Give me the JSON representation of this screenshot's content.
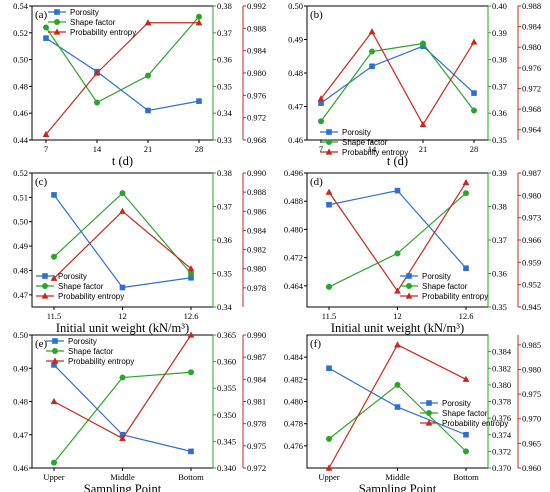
{
  "colors": {
    "porosity": "#2e6fd1",
    "shape": "#2aa52a",
    "entropy": "#c8291e"
  },
  "chart_data": [
    {
      "type": "line",
      "tag": "(a)",
      "xlabel": "t (d)",
      "categories": [
        "7",
        "14",
        "21",
        "28"
      ],
      "legend": [
        "Porosity",
        "Shape factor",
        "Probability entropy"
      ],
      "axes": {
        "left": {
          "min": 0.44,
          "max": 0.54,
          "ticks": [
            "0.44",
            "0.46",
            "0.48",
            "0.50",
            "0.52",
            "0.54"
          ]
        },
        "mid": {
          "min": 0.33,
          "max": 0.38,
          "ticks": [
            "0.33",
            "0.34",
            "0.35",
            "0.36",
            "0.37",
            "0.38"
          ]
        },
        "right": {
          "min": 0.968,
          "max": 0.992,
          "ticks": [
            "0.968",
            "0.972",
            "0.976",
            "0.980",
            "0.984",
            "0.988",
            "0.992"
          ]
        }
      },
      "series": [
        {
          "name": "Porosity",
          "axis": "left",
          "values": [
            0.516,
            0.491,
            0.462,
            0.469
          ]
        },
        {
          "name": "Shape factor",
          "axis": "mid",
          "values": [
            0.372,
            0.344,
            0.354,
            0.376
          ]
        },
        {
          "name": "Probability entropy",
          "axis": "right",
          "values": [
            0.969,
            0.98,
            0.989,
            0.989
          ]
        }
      ]
    },
    {
      "type": "line",
      "tag": "(b)",
      "xlabel": "t (d)",
      "categories": [
        "7",
        "14",
        "21",
        "28"
      ],
      "legend": [
        "Porosity",
        "Shape factor",
        "Probability entropy"
      ],
      "axes": {
        "left": {
          "min": 0.46,
          "max": 0.5,
          "ticks": [
            "0.46",
            "0.47",
            "0.48",
            "0.49",
            "0.50"
          ]
        },
        "mid": {
          "min": 0.35,
          "max": 0.4,
          "ticks": [
            "0.35",
            "0.36",
            "0.37",
            "0.38",
            "0.39",
            "0.40"
          ]
        },
        "right": {
          "min": 0.962,
          "max": 0.988,
          "ticks": [
            "0.964",
            "0.968",
            "0.972",
            "0.976",
            "0.980",
            "0.984",
            "0.988"
          ]
        }
      },
      "series": [
        {
          "name": "Porosity",
          "axis": "left",
          "values": [
            0.471,
            0.482,
            0.488,
            0.474
          ]
        },
        {
          "name": "Shape factor",
          "axis": "mid",
          "values": [
            0.357,
            0.383,
            0.386,
            0.361
          ]
        },
        {
          "name": "Probability entropy",
          "axis": "right",
          "values": [
            0.97,
            0.983,
            0.965,
            0.981
          ]
        }
      ]
    },
    {
      "type": "line",
      "tag": "(c)",
      "xlabel": "Initial unit weight (kN/m³)",
      "categories": [
        "11.5",
        "12",
        "12.6"
      ],
      "legend": [
        "Porosity",
        "Shape factor",
        "Probability entropy"
      ],
      "axes": {
        "left": {
          "min": 0.465,
          "max": 0.52,
          "ticks": [
            "0.47",
            "0.48",
            "0.49",
            "0.50",
            "0.51",
            "0.52"
          ]
        },
        "mid": {
          "min": 0.34,
          "max": 0.38,
          "ticks": [
            "0.34",
            "0.35",
            "0.36",
            "0.37",
            "0.38"
          ]
        },
        "right": {
          "min": 0.976,
          "max": 0.99,
          "ticks": [
            "0.978",
            "0.980",
            "0.982",
            "0.984",
            "0.986",
            "0.988",
            "0.990"
          ]
        }
      },
      "series": [
        {
          "name": "Porosity",
          "axis": "left",
          "values": [
            0.511,
            0.473,
            0.477
          ]
        },
        {
          "name": "Shape factor",
          "axis": "mid",
          "values": [
            0.355,
            0.374,
            0.35
          ]
        },
        {
          "name": "Probability entropy",
          "axis": "right",
          "values": [
            0.979,
            0.986,
            0.98
          ]
        }
      ]
    },
    {
      "type": "line",
      "tag": "(d)",
      "xlabel": "Initial unit weight (kN/m³)",
      "categories": [
        "11.5",
        "12",
        "12.6"
      ],
      "legend": [
        "Porosity",
        "Shape factor",
        "Probability entropy"
      ],
      "axes": {
        "left": {
          "min": 0.458,
          "max": 0.496,
          "ticks": [
            "0.464",
            "0.472",
            "0.480",
            "0.488",
            "0.496"
          ]
        },
        "mid": {
          "min": 0.35,
          "max": 0.39,
          "ticks": [
            "0.35",
            "0.36",
            "0.37",
            "0.38",
            "0.39"
          ]
        },
        "right": {
          "min": 0.945,
          "max": 0.987,
          "ticks": [
            "0.945",
            "0.952",
            "0.959",
            "0.966",
            "0.973",
            "0.980",
            "0.987"
          ]
        }
      },
      "series": [
        {
          "name": "Porosity",
          "axis": "left",
          "values": [
            0.487,
            0.491,
            0.469
          ]
        },
        {
          "name": "Shape factor",
          "axis": "mid",
          "values": [
            0.356,
            0.366,
            0.384
          ]
        },
        {
          "name": "Probability entropy",
          "axis": "right",
          "values": [
            0.981,
            0.95,
            0.984
          ]
        }
      ]
    },
    {
      "type": "line",
      "tag": "(e)",
      "xlabel": "Sampling Point",
      "categories": [
        "Upper",
        "Middle",
        "Bottom"
      ],
      "legend": [
        "Porosity",
        "Shape factor",
        "Probability entropy"
      ],
      "axes": {
        "left": {
          "min": 0.46,
          "max": 0.5,
          "ticks": [
            "0.46",
            "0.47",
            "0.48",
            "0.49",
            "0.50"
          ]
        },
        "mid": {
          "min": 0.34,
          "max": 0.365,
          "ticks": [
            "0.340",
            "0.345",
            "0.350",
            "0.355",
            "0.360",
            "0.365"
          ]
        },
        "right": {
          "min": 0.972,
          "max": 0.99,
          "ticks": [
            "0.972",
            "0.975",
            "0.978",
            "0.981",
            "0.984",
            "0.987",
            "0.990"
          ]
        }
      },
      "series": [
        {
          "name": "Porosity",
          "axis": "left",
          "values": [
            0.491,
            0.47,
            0.465
          ]
        },
        {
          "name": "Shape factor",
          "axis": "mid",
          "values": [
            0.341,
            0.357,
            0.358
          ]
        },
        {
          "name": "Probability entropy",
          "axis": "right",
          "values": [
            0.981,
            0.976,
            0.99
          ]
        }
      ]
    },
    {
      "type": "line",
      "tag": "(f)",
      "xlabel": "Sampling Point",
      "categories": [
        "Upper",
        "Middle",
        "Bottom"
      ],
      "legend": [
        "Porosity",
        "Shape factor",
        "Probability entropy"
      ],
      "axes": {
        "left": {
          "min": 0.474,
          "max": 0.486,
          "ticks": [
            "0.476",
            "0.478",
            "0.480",
            "0.482",
            "0.484"
          ]
        },
        "mid": {
          "min": 0.37,
          "max": 0.386,
          "ticks": [
            "0.370",
            "0.372",
            "0.374",
            "0.376",
            "0.378",
            "0.380",
            "0.382",
            "0.384"
          ]
        },
        "right": {
          "min": 0.96,
          "max": 0.987,
          "ticks": [
            "0.960",
            "0.965",
            "0.970",
            "0.975",
            "0.980",
            "0.985"
          ]
        }
      },
      "series": [
        {
          "name": "Porosity",
          "axis": "left",
          "values": [
            0.483,
            0.4795,
            0.477
          ]
        },
        {
          "name": "Shape factor",
          "axis": "mid",
          "values": [
            0.3735,
            0.38,
            0.372
          ]
        },
        {
          "name": "Probability entropy",
          "axis": "right",
          "values": [
            0.96,
            0.985,
            0.978
          ]
        }
      ]
    }
  ]
}
